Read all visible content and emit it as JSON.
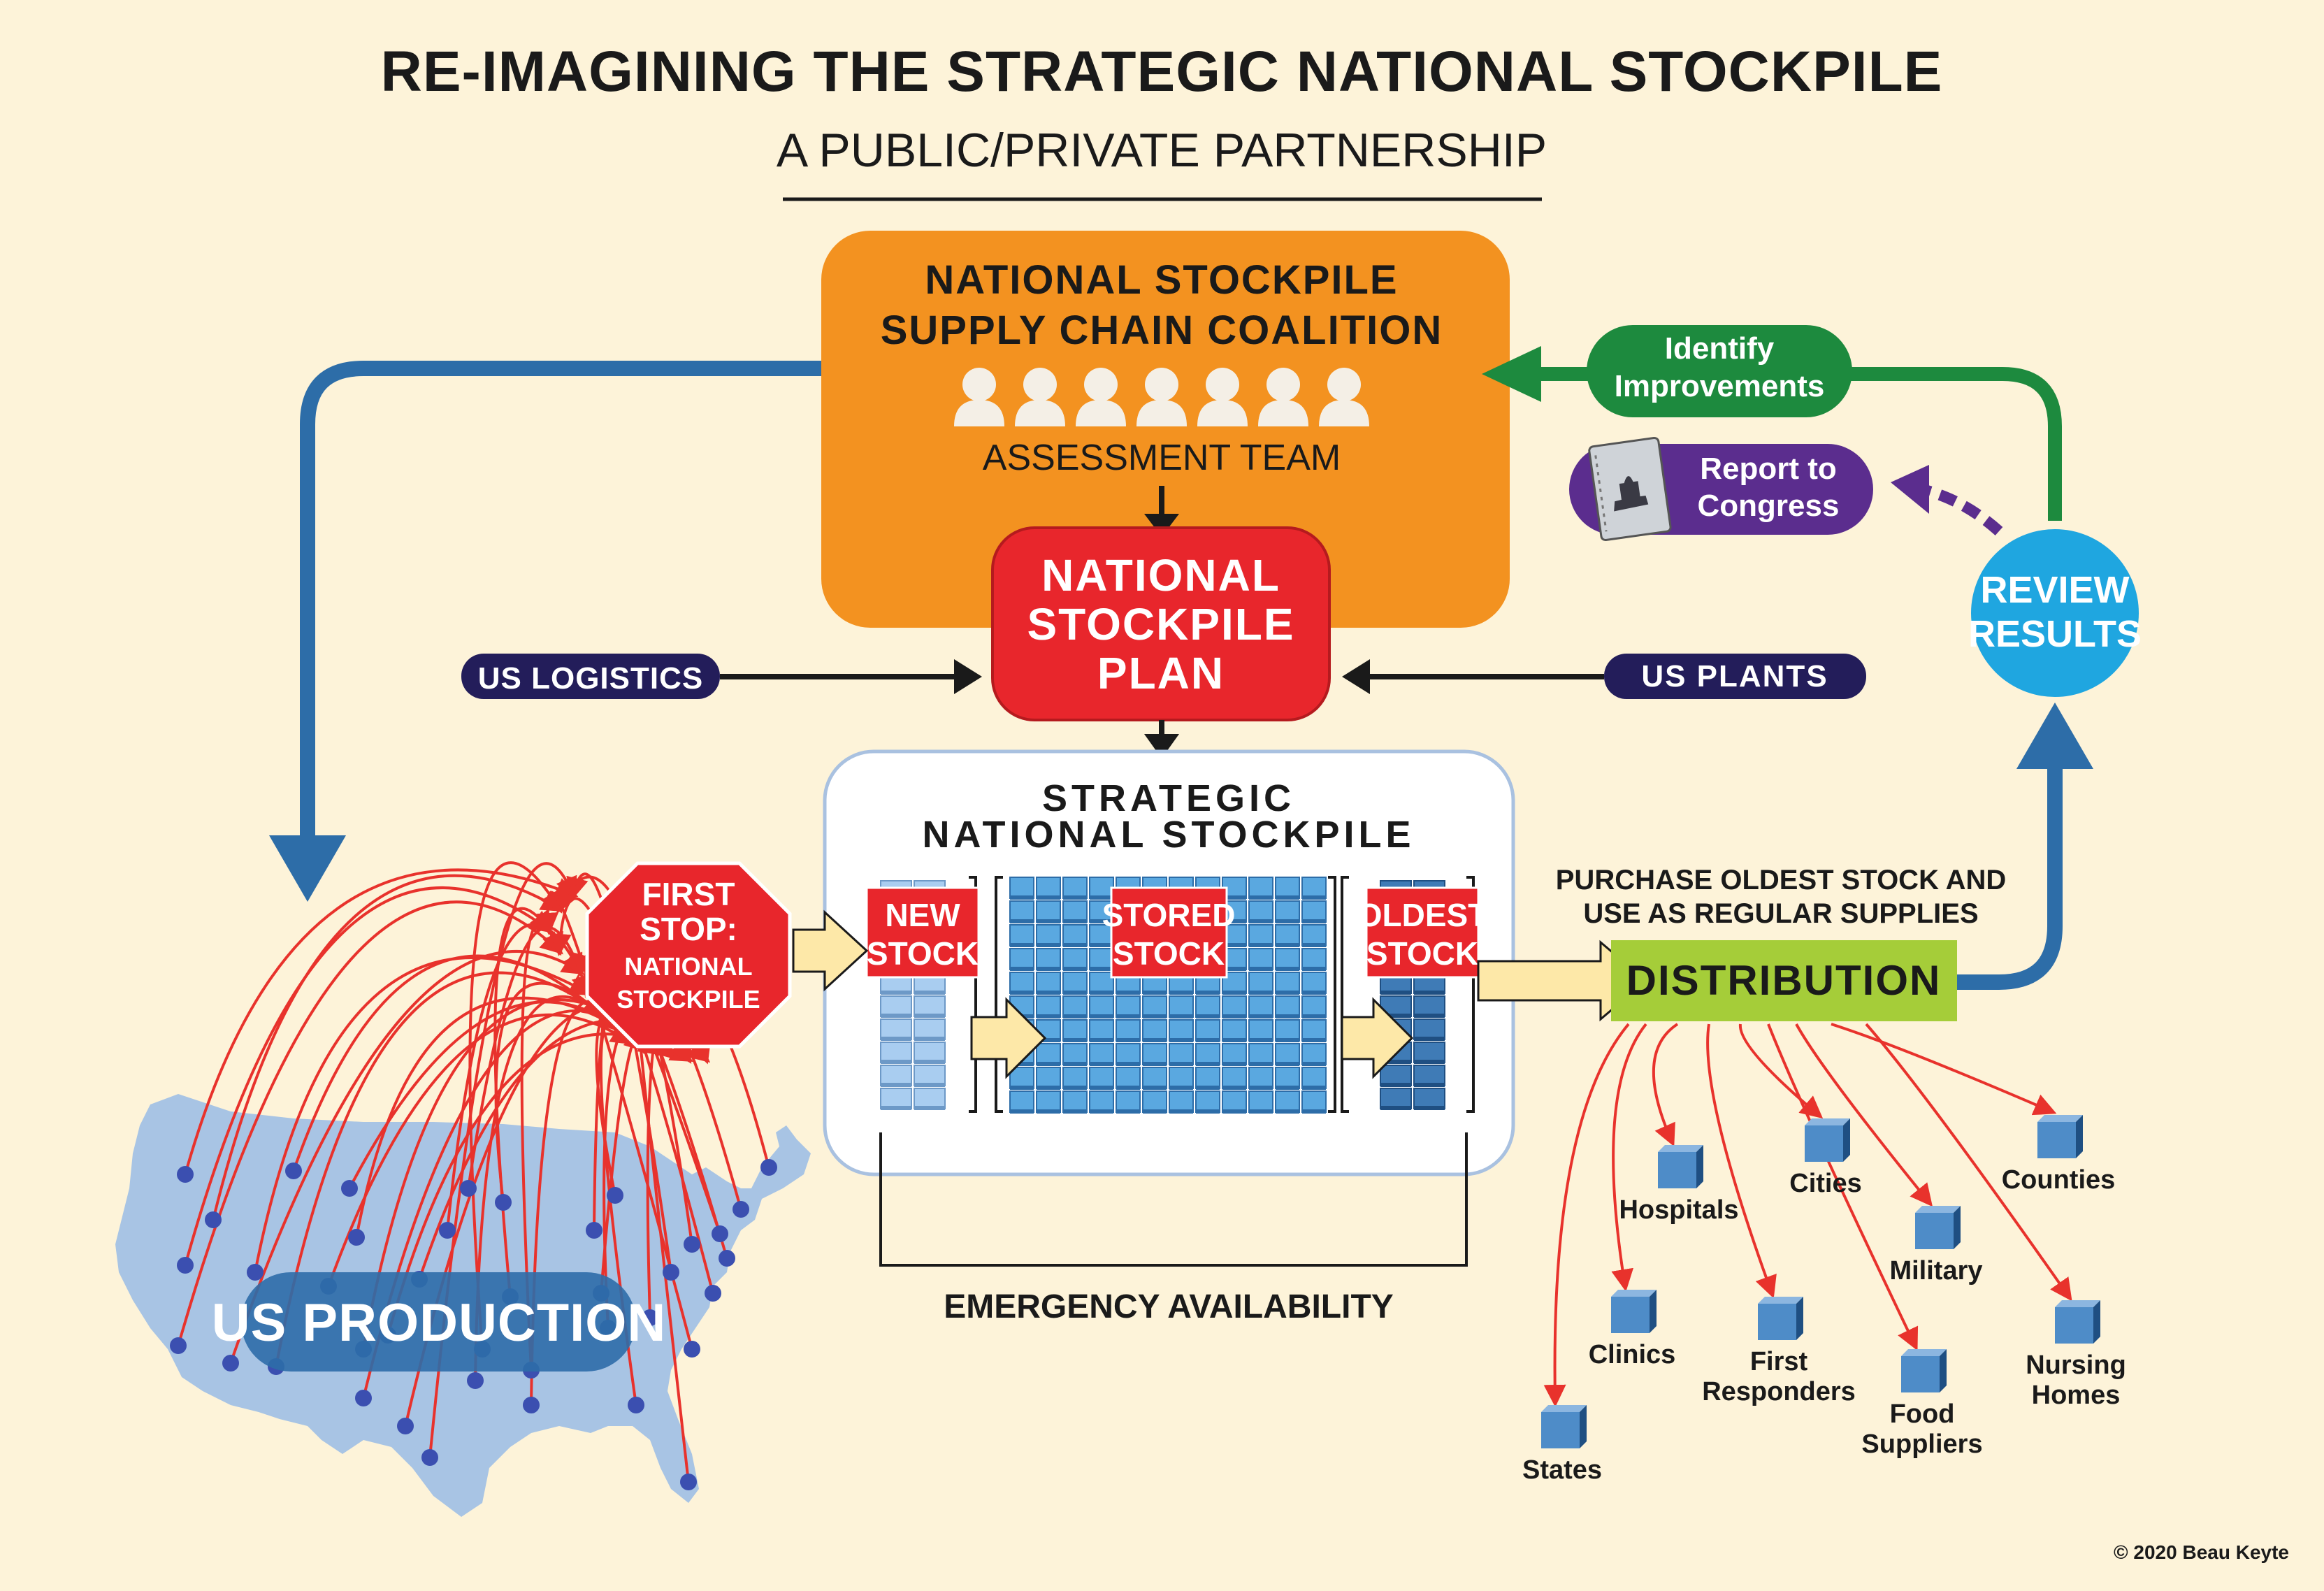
{
  "title": "RE-IMAGINING THE STRATEGIC NATIONAL STOCKPILE",
  "subtitle": "A PUBLIC/PRIVATE PARTNERSHIP",
  "coalition": {
    "line1": "NATIONAL STOCKPILE",
    "line2": "SUPPLY CHAIN COALITION",
    "team_label": "ASSESSMENT TEAM",
    "people_icon_count": 7
  },
  "plan": {
    "line1": "NATIONAL",
    "line2": "STOCKPILE",
    "line3": "PLAN"
  },
  "logistics": "US LOGISTICS",
  "plants": "US PLANTS",
  "improvements": {
    "line1": "Identify",
    "line2": "Improvements"
  },
  "report": {
    "line1": "Report to",
    "line2": "Congress",
    "icon": "capitol-report-icon"
  },
  "review": {
    "line1": "REVIEW",
    "line2": "RESULTS"
  },
  "sns": {
    "line1": "STRATEGIC",
    "line2": "NATIONAL STOCKPILE",
    "new_stock": {
      "line1": "NEW",
      "line2": "STOCK"
    },
    "stored_stock": {
      "line1": "STORED",
      "line2": "STOCK"
    },
    "oldest_stock": {
      "line1": "OLDEST",
      "line2": "STOCK"
    }
  },
  "first_stop": {
    "line1": "FIRST",
    "line2": "STOP:",
    "line3": "NATIONAL",
    "line4": "STOCKPILE"
  },
  "emergency": "EMERGENCY AVAILABILITY",
  "production": "US PRODUCTION",
  "purchase_note": {
    "line1": "PURCHASE OLDEST STOCK AND",
    "line2": "USE AS REGULAR SUPPLIES"
  },
  "distribution": "DISTRIBUTION",
  "destinations": [
    {
      "line1": "States",
      "line2": ""
    },
    {
      "line1": "Clinics",
      "line2": ""
    },
    {
      "line1": "Hospitals",
      "line2": ""
    },
    {
      "line1": "First",
      "line2": "Responders"
    },
    {
      "line1": "Cities",
      "line2": ""
    },
    {
      "line1": "Food",
      "line2": "Suppliers"
    },
    {
      "line1": "Military",
      "line2": ""
    },
    {
      "line1": "Counties",
      "line2": ""
    },
    {
      "line1": "Nursing",
      "line2": "Homes"
    }
  ],
  "copyright": "© 2020 Beau Keyte",
  "colors": {
    "background": "#fdf3d9",
    "orange": "#f39220",
    "red": "#e8262c",
    "navy": "#231d5a",
    "green": "#1d8a3e",
    "purple": "#5b2d8e",
    "cyan": "#1fa6e0",
    "blue_arrow": "#2d6da8",
    "lime": "#a5cd39",
    "cell_blue": "#5aa8e0",
    "map_blue": "#a8c4e4"
  }
}
